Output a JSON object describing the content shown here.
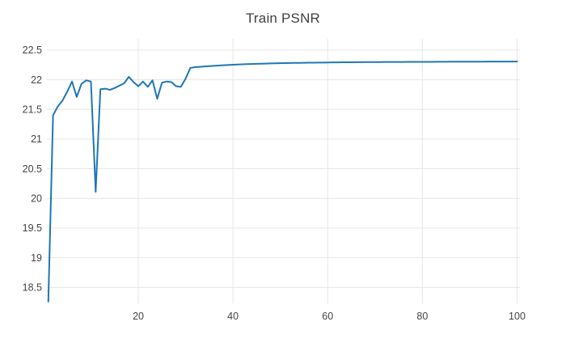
{
  "chart_data": {
    "type": "line",
    "title": "Train PSNR",
    "xlabel": "",
    "ylabel": "",
    "grid": true,
    "legend": false,
    "xlim": [
      0.7,
      100.6
    ],
    "ylim": [
      18.23,
      22.69
    ],
    "xticks": [
      20,
      40,
      60,
      80,
      100
    ],
    "yticks": [
      18.5,
      19,
      19.5,
      20,
      20.5,
      21,
      21.5,
      22,
      22.5
    ],
    "colors": {
      "line": "#1f77b4",
      "grid": "#e6e6e6",
      "tick_label": "#444444",
      "title": "#3f3f3f",
      "background": "#ffffff"
    },
    "series": [
      {
        "name": "Train PSNR",
        "color": "#1f77b4",
        "x": [
          1,
          2,
          3,
          4,
          5,
          6,
          7,
          8,
          9,
          10,
          11,
          12,
          13,
          14,
          15,
          16,
          17,
          18,
          19,
          20,
          21,
          22,
          23,
          24,
          25,
          26,
          27,
          28,
          29,
          30,
          31,
          32,
          33,
          34,
          35,
          36,
          37,
          38,
          39,
          40,
          41,
          42,
          43,
          44,
          45,
          46,
          47,
          48,
          49,
          50,
          51,
          52,
          53,
          54,
          55,
          56,
          57,
          58,
          59,
          60,
          61,
          62,
          63,
          64,
          65,
          66,
          67,
          68,
          69,
          70,
          71,
          72,
          73,
          74,
          75,
          76,
          77,
          78,
          79,
          80,
          81,
          82,
          83,
          84,
          85,
          86,
          87,
          88,
          89,
          90,
          91,
          92,
          93,
          94,
          95,
          96,
          97,
          98,
          99,
          100
        ],
        "y": [
          18.26,
          21.4,
          21.55,
          21.65,
          21.8,
          21.97,
          21.71,
          21.93,
          21.99,
          21.97,
          20.11,
          21.84,
          21.85,
          21.83,
          21.86,
          21.9,
          21.94,
          22.05,
          21.96,
          21.89,
          21.97,
          21.88,
          21.99,
          21.68,
          21.95,
          21.97,
          21.96,
          21.89,
          21.88,
          22.02,
          22.2,
          22.212,
          22.218,
          22.224,
          22.23,
          22.235,
          22.24,
          22.245,
          22.249,
          22.253,
          22.257,
          22.26,
          22.263,
          22.266,
          22.269,
          22.271,
          22.273,
          22.275,
          22.277,
          22.279,
          22.281,
          22.282,
          22.284,
          22.285,
          22.286,
          22.287,
          22.288,
          22.289,
          22.29,
          22.291,
          22.292,
          22.293,
          22.294,
          22.294,
          22.295,
          22.296,
          22.296,
          22.297,
          22.297,
          22.298,
          22.298,
          22.299,
          22.299,
          22.3,
          22.3,
          22.3,
          22.301,
          22.301,
          22.301,
          22.302,
          22.302,
          22.302,
          22.303,
          22.303,
          22.303,
          22.304,
          22.304,
          22.304,
          22.304,
          22.305,
          22.305,
          22.305,
          22.305,
          22.306,
          22.306,
          22.306,
          22.306,
          22.307,
          22.307,
          22.308
        ]
      }
    ]
  }
}
